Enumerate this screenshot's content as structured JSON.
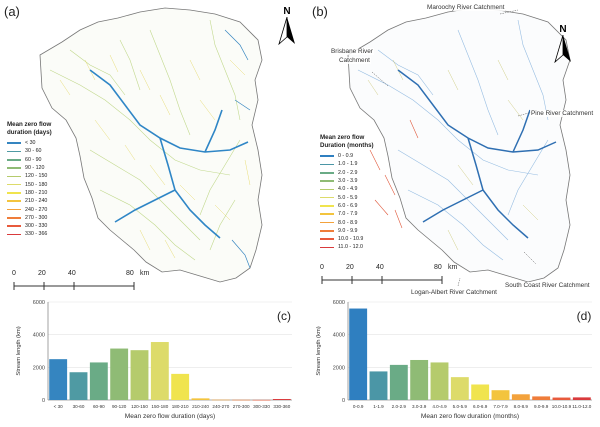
{
  "panel_a": {
    "label": "(a)",
    "north": "N",
    "legend_title": "Mean zero flow",
    "legend_subtitle": "duration (days)",
    "legend_items": [
      {
        "label": "< 30",
        "color": "#3585c0"
      },
      {
        "label": "30 - 60",
        "color": "#4f9aa3"
      },
      {
        "label": "60 - 90",
        "color": "#6aab86"
      },
      {
        "label": "90 - 120",
        "color": "#8fbb75"
      },
      {
        "label": "120 - 150",
        "color": "#b5cb6c"
      },
      {
        "label": "150 - 180",
        "color": "#dddb6a"
      },
      {
        "label": "180 - 210",
        "color": "#f0e44e"
      },
      {
        "label": "210 - 240",
        "color": "#f3c43e"
      },
      {
        "label": "240 - 270",
        "color": "#f3a23c"
      },
      {
        "label": "270 - 300",
        "color": "#ef7d3a"
      },
      {
        "label": "300 - 330",
        "color": "#e85a3c"
      },
      {
        "label": "330 - 366",
        "color": "#d93a3c"
      }
    ],
    "scale_ticks": [
      "0",
      "20",
      "40",
      "80"
    ],
    "scale_unit": "km"
  },
  "panel_b": {
    "label": "(b)",
    "north": "N",
    "legend_title": "Mean zero flow",
    "legend_subtitle": "Duration (months)",
    "legend_items": [
      {
        "label": "0 - 0.9",
        "color": "#2f7fc0"
      },
      {
        "label": "1.0 - 1.9",
        "color": "#4b96a6"
      },
      {
        "label": "2.0 - 2.9",
        "color": "#6aab86"
      },
      {
        "label": "3.0 - 3.9",
        "color": "#8fbb75"
      },
      {
        "label": "4.0 - 4.9",
        "color": "#b5cb6c"
      },
      {
        "label": "5.0 - 5.9",
        "color": "#dddb6a"
      },
      {
        "label": "6.0 - 6.9",
        "color": "#f0e44e"
      },
      {
        "label": "7.0 - 7.9",
        "color": "#f3c43e"
      },
      {
        "label": "8.0 - 8.9",
        "color": "#f3a23c"
      },
      {
        "label": "9.0 - 9.9",
        "color": "#ef7d3a"
      },
      {
        "label": "10.0 - 10.9",
        "color": "#e85a3c"
      },
      {
        "label": "11.0 - 12.0",
        "color": "#d93a3c"
      }
    ],
    "scale_ticks": [
      "0",
      "20",
      "40",
      "80"
    ],
    "scale_unit": "km",
    "annotations": {
      "maroochy": "Maroochy River Catchment",
      "brisbane_1": "Brisbane River",
      "brisbane_2": "Catchment",
      "pine": "Pine River Catchment",
      "south_coast": "South Coast River Catchment",
      "logan": "Logan-Albert River Catchment"
    }
  },
  "chart_data": [
    {
      "type": "bar",
      "panel": "(c)",
      "categories": [
        "< 30",
        "30-60",
        "60-90",
        "90-120",
        "120-150",
        "150-180",
        "180-210",
        "210-240",
        "240-270",
        "270-300",
        "300-330",
        "330-360"
      ],
      "values": [
        2500,
        1700,
        2300,
        3150,
        3050,
        3550,
        1600,
        100,
        20,
        15,
        10,
        60
      ],
      "colors": [
        "#3585c0",
        "#4f9aa3",
        "#6aab86",
        "#8fbb75",
        "#b5cb6c",
        "#dddb6a",
        "#f0e44e",
        "#f3c43e",
        "#f3a23c",
        "#ef7d3a",
        "#e85a3c",
        "#d93a3c"
      ],
      "xlabel": "Mean zero flow duration (days)",
      "ylabel": "Stream length (km)",
      "yticks": [
        "0",
        "2000",
        "4000",
        "6000"
      ],
      "ylim": [
        0,
        6000
      ],
      "grid": true
    },
    {
      "type": "bar",
      "panel": "(d)",
      "categories": [
        "0-0.9",
        "1-1.9",
        "2.0-2.9",
        "3.0-3.9",
        "4.0-4.9",
        "5.0-5.9",
        "6.0-6.9",
        "7.0-7.9",
        "8.0-8.9",
        "9.0-9.9",
        "10.0-10.9",
        "11.0-12.0"
      ],
      "values": [
        5600,
        1750,
        2150,
        2450,
        2300,
        1400,
        950,
        600,
        350,
        220,
        150,
        160
      ],
      "colors": [
        "#2f7fc0",
        "#4b96a6",
        "#6aab86",
        "#8fbb75",
        "#b5cb6c",
        "#dddb6a",
        "#f0e44e",
        "#f3c43e",
        "#f3a23c",
        "#ef7d3a",
        "#e85a3c",
        "#d93a3c"
      ],
      "xlabel": "Mean zero flow duration (months)",
      "ylabel": "Stream length (km)",
      "yticks": [
        "0",
        "2000",
        "4000",
        "6000"
      ],
      "ylim": [
        0,
        6000
      ],
      "grid": true
    }
  ]
}
